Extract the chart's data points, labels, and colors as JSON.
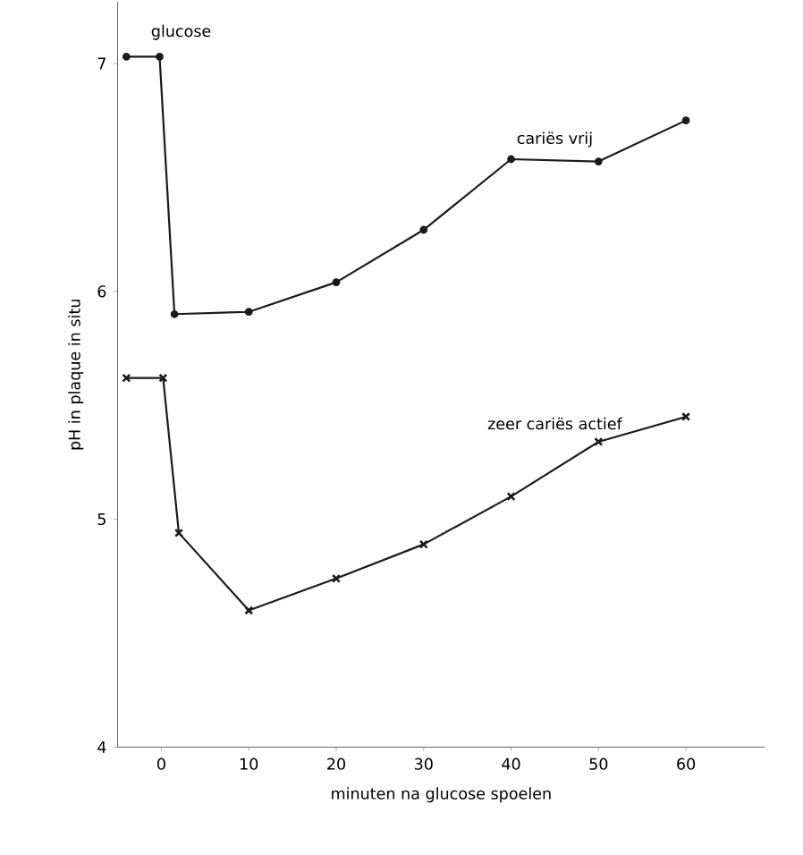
{
  "chart_data": {
    "type": "line",
    "xlabel": "minuten na glucose spoelen",
    "ylabel": "pH in plaque in situ",
    "xlim": [
      -5,
      69
    ],
    "ylim": [
      4,
      7.27
    ],
    "xticks": [
      0,
      10,
      20,
      30,
      40,
      50,
      60
    ],
    "yticks": [
      4,
      5,
      6,
      7
    ],
    "grid": false,
    "legend": false,
    "line_style": "solid",
    "annotations": [
      "glucose"
    ],
    "series": [
      {
        "name": "cariës vrij",
        "color": "#1a1a1a",
        "marker": "circle",
        "x": [
          -4,
          -0.2,
          1.5,
          10,
          20,
          30,
          40,
          50,
          60
        ],
        "values": [
          7.03,
          7.03,
          5.9,
          5.91,
          6.04,
          6.27,
          6.58,
          6.57,
          6.75
        ]
      },
      {
        "name": "zeer cariës actief",
        "color": "#1a1a1a",
        "marker": "cross",
        "x": [
          -4,
          0.2,
          2,
          10,
          20,
          30,
          40,
          50,
          60
        ],
        "values": [
          5.62,
          5.62,
          4.94,
          4.6,
          4.74,
          4.89,
          5.1,
          5.34,
          5.45
        ]
      }
    ]
  }
}
